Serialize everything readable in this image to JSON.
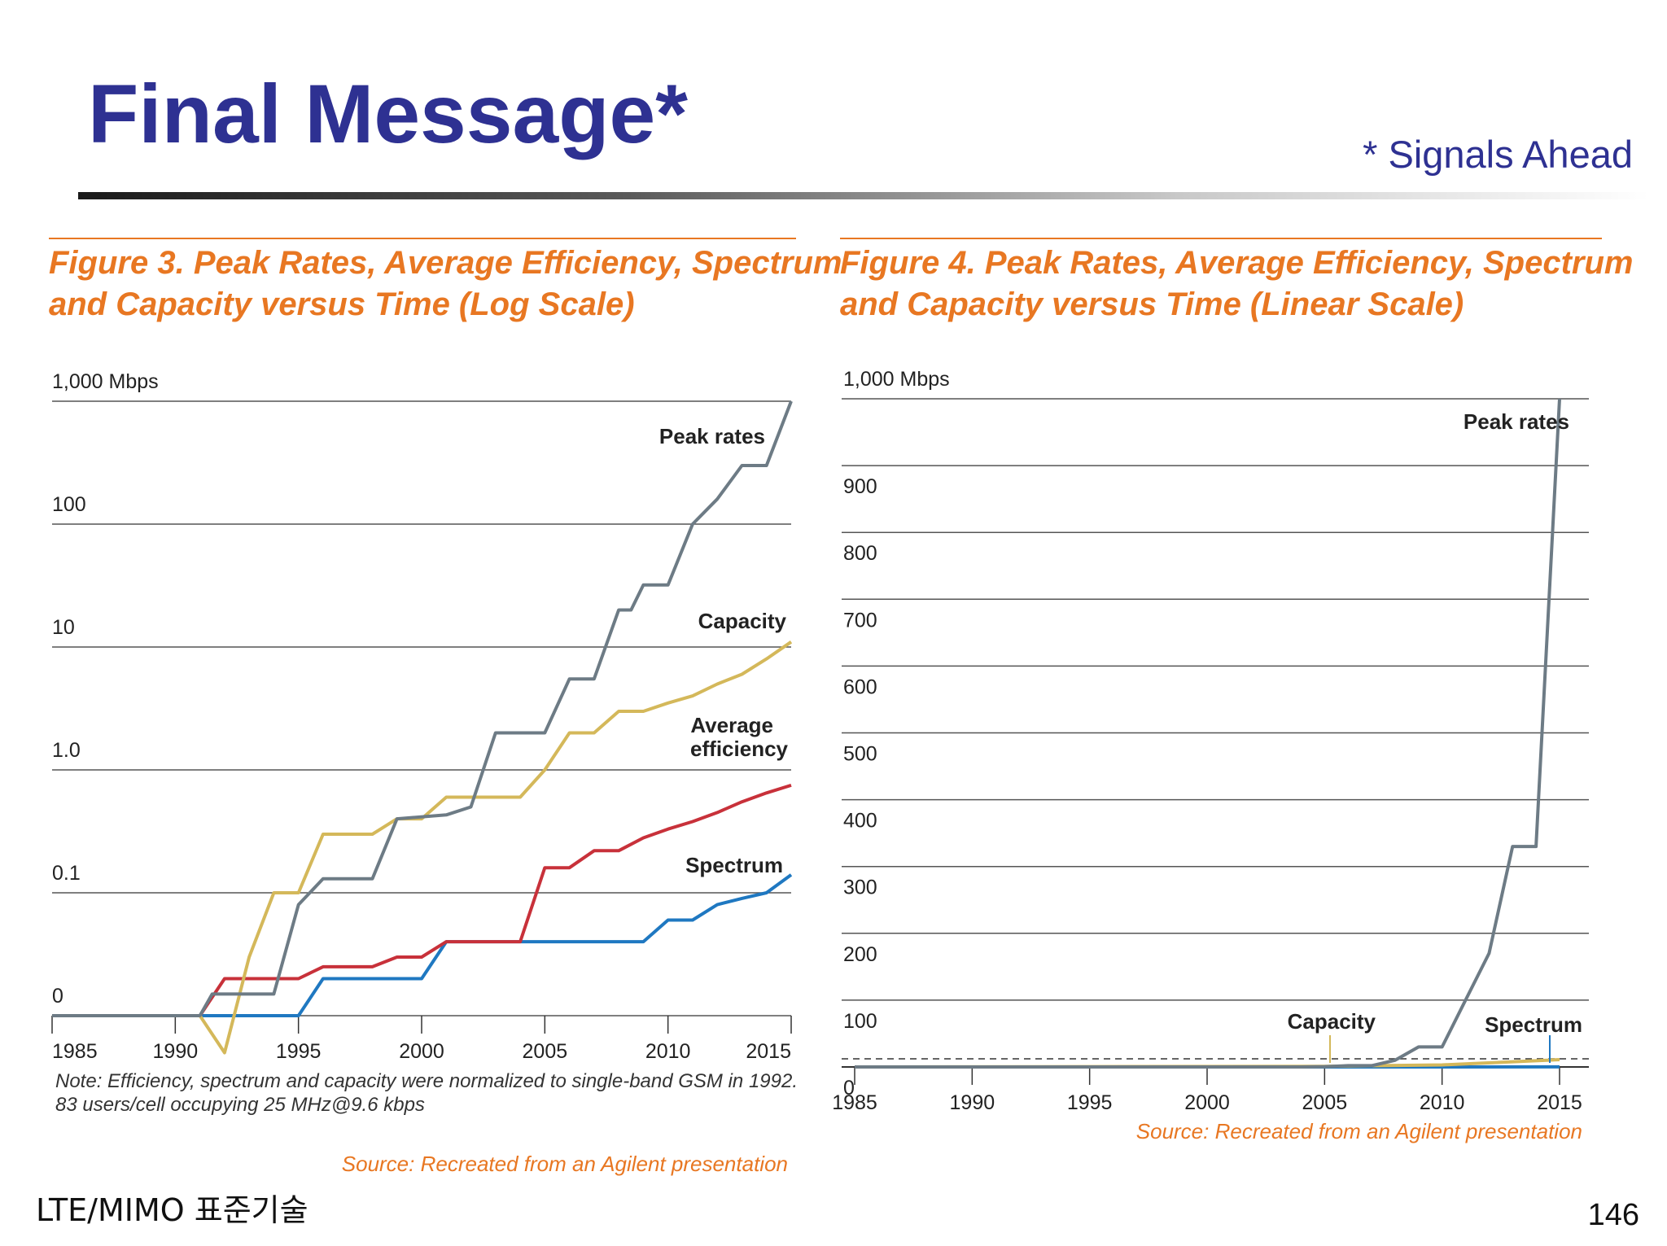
{
  "slide": {
    "title": "Final Message*",
    "subtitle": "* Signals Ahead",
    "footer_left": "LTE/MIMO 표준기술",
    "page_number": "146"
  },
  "colors": {
    "title": "#2e3192",
    "figure_title": "#e87722",
    "peak_rates": "#6d7b85",
    "capacity": "#d4b85a",
    "average_efficiency": "#c8313a",
    "spectrum": "#1f78c1"
  },
  "chart_data": [
    {
      "type": "line",
      "title": "Figure 3. Peak Rates, Average Efficiency, Spectrum",
      "title_line2": "and Capacity versus Time (Log Scale)",
      "xlabel": "",
      "ylabel": "",
      "y_scale": "log",
      "xlim": [
        1985,
        2015
      ],
      "x_ticks": [
        "1985",
        "1990",
        "1995",
        "2000",
        "2005",
        "2010",
        "2015"
      ],
      "y_ticks": [
        "1,000 Mbps",
        "100",
        "10",
        "1.0",
        "0.1",
        "0"
      ],
      "grid": true,
      "note": "Note: Efficiency, spectrum and capacity were normalized to single-band GSM in 1992. 83 users/cell occupying 25 MHz@9.6 kbps",
      "source": "Source: Recreated from an Agilent presentation",
      "series": [
        {
          "name": "Peak rates",
          "x": [
            1985,
            1991,
            1991.5,
            1994,
            1995,
            1996,
            1998,
            1999,
            2001,
            2002,
            2003,
            2004,
            2005,
            2006,
            2007,
            2008,
            2008.5,
            2009,
            2010,
            2011,
            2012,
            2013,
            2014,
            2015
          ],
          "y": [
            0,
            0,
            0.015,
            0.015,
            0.08,
            0.13,
            0.13,
            0.4,
            0.43,
            0.5,
            2.0,
            2.0,
            2.0,
            5.5,
            5.5,
            20,
            20,
            32,
            32,
            100,
            160,
            300,
            300,
            1000
          ]
        },
        {
          "name": "Capacity",
          "x": [
            1985,
            1991,
            1992,
            1993,
            1994,
            1995,
            1996,
            1997,
            1998,
            1999,
            2000,
            2001,
            2002,
            2003,
            2004,
            2005,
            2006,
            2007,
            2008,
            2009,
            2010,
            2011,
            2012,
            2013,
            2014,
            2015
          ],
          "y": [
            0,
            0,
            0.005,
            0.03,
            0.1,
            0.1,
            0.3,
            0.3,
            0.3,
            0.4,
            0.4,
            0.6,
            0.6,
            0.6,
            0.6,
            1.0,
            2.0,
            2.0,
            3.0,
            3.0,
            3.5,
            4.0,
            5.0,
            6.0,
            8.0,
            11.0
          ]
        },
        {
          "name": "Average efficiency",
          "x": [
            1985,
            1991,
            1992,
            1993,
            1994,
            1995,
            1996,
            1997,
            1998,
            1999,
            2000,
            2001,
            2002,
            2003,
            2004,
            2005,
            2006,
            2007,
            2008,
            2009,
            2010,
            2011,
            2012,
            2013,
            2014,
            2015
          ],
          "y": [
            0,
            0,
            0.02,
            0.02,
            0.02,
            0.02,
            0.025,
            0.025,
            0.025,
            0.03,
            0.03,
            0.04,
            0.04,
            0.04,
            0.04,
            0.16,
            0.16,
            0.22,
            0.22,
            0.28,
            0.33,
            0.38,
            0.45,
            0.55,
            0.65,
            0.75
          ]
        },
        {
          "name": "Spectrum",
          "x": [
            1985,
            1992,
            1993,
            1994,
            1995,
            1996,
            1997,
            1998,
            1999,
            2000,
            2001,
            2002,
            2003,
            2004,
            2005,
            2006,
            2007,
            2008,
            2009,
            2010,
            2011,
            2012,
            2013,
            2014,
            2015
          ],
          "y": [
            0,
            0,
            0,
            0.01,
            0.01,
            0.02,
            0.02,
            0.02,
            0.02,
            0.02,
            0.04,
            0.04,
            0.04,
            0.04,
            0.04,
            0.04,
            0.04,
            0.04,
            0.04,
            0.06,
            0.06,
            0.08,
            0.09,
            0.1,
            0.14
          ]
        }
      ]
    },
    {
      "type": "line",
      "title": "Figure 4. Peak Rates, Average Efficiency, Spectrum",
      "title_line2": "and Capacity versus Time (Linear Scale)",
      "xlabel": "",
      "ylabel": "",
      "y_scale": "linear",
      "xlim": [
        1985,
        2015
      ],
      "ylim": [
        0,
        1000
      ],
      "x_ticks": [
        "1985",
        "1990",
        "1995",
        "2000",
        "2005",
        "2010",
        "2015"
      ],
      "y_ticks": [
        "1,000 Mbps",
        "900",
        "800",
        "700",
        "600",
        "500",
        "400",
        "300",
        "200",
        "100",
        "0"
      ],
      "grid": true,
      "source": "Source: Recreated from an Agilent presentation",
      "series": [
        {
          "name": "Peak rates",
          "x": [
            1985,
            2004,
            2005,
            2006,
            2007,
            2008,
            2009,
            2010,
            2011,
            2012,
            2013,
            2014,
            2015
          ],
          "y": [
            0,
            0,
            0.5,
            2,
            2,
            10,
            30,
            30,
            100,
            170,
            330,
            330,
            1000
          ]
        },
        {
          "name": "Capacity",
          "x": [
            1985,
            2005,
            2010,
            2015
          ],
          "y": [
            0,
            1,
            3,
            11
          ]
        },
        {
          "name": "Spectrum",
          "x": [
            1985,
            2010,
            2015
          ],
          "y": [
            0,
            0.06,
            0.14
          ]
        }
      ]
    }
  ]
}
